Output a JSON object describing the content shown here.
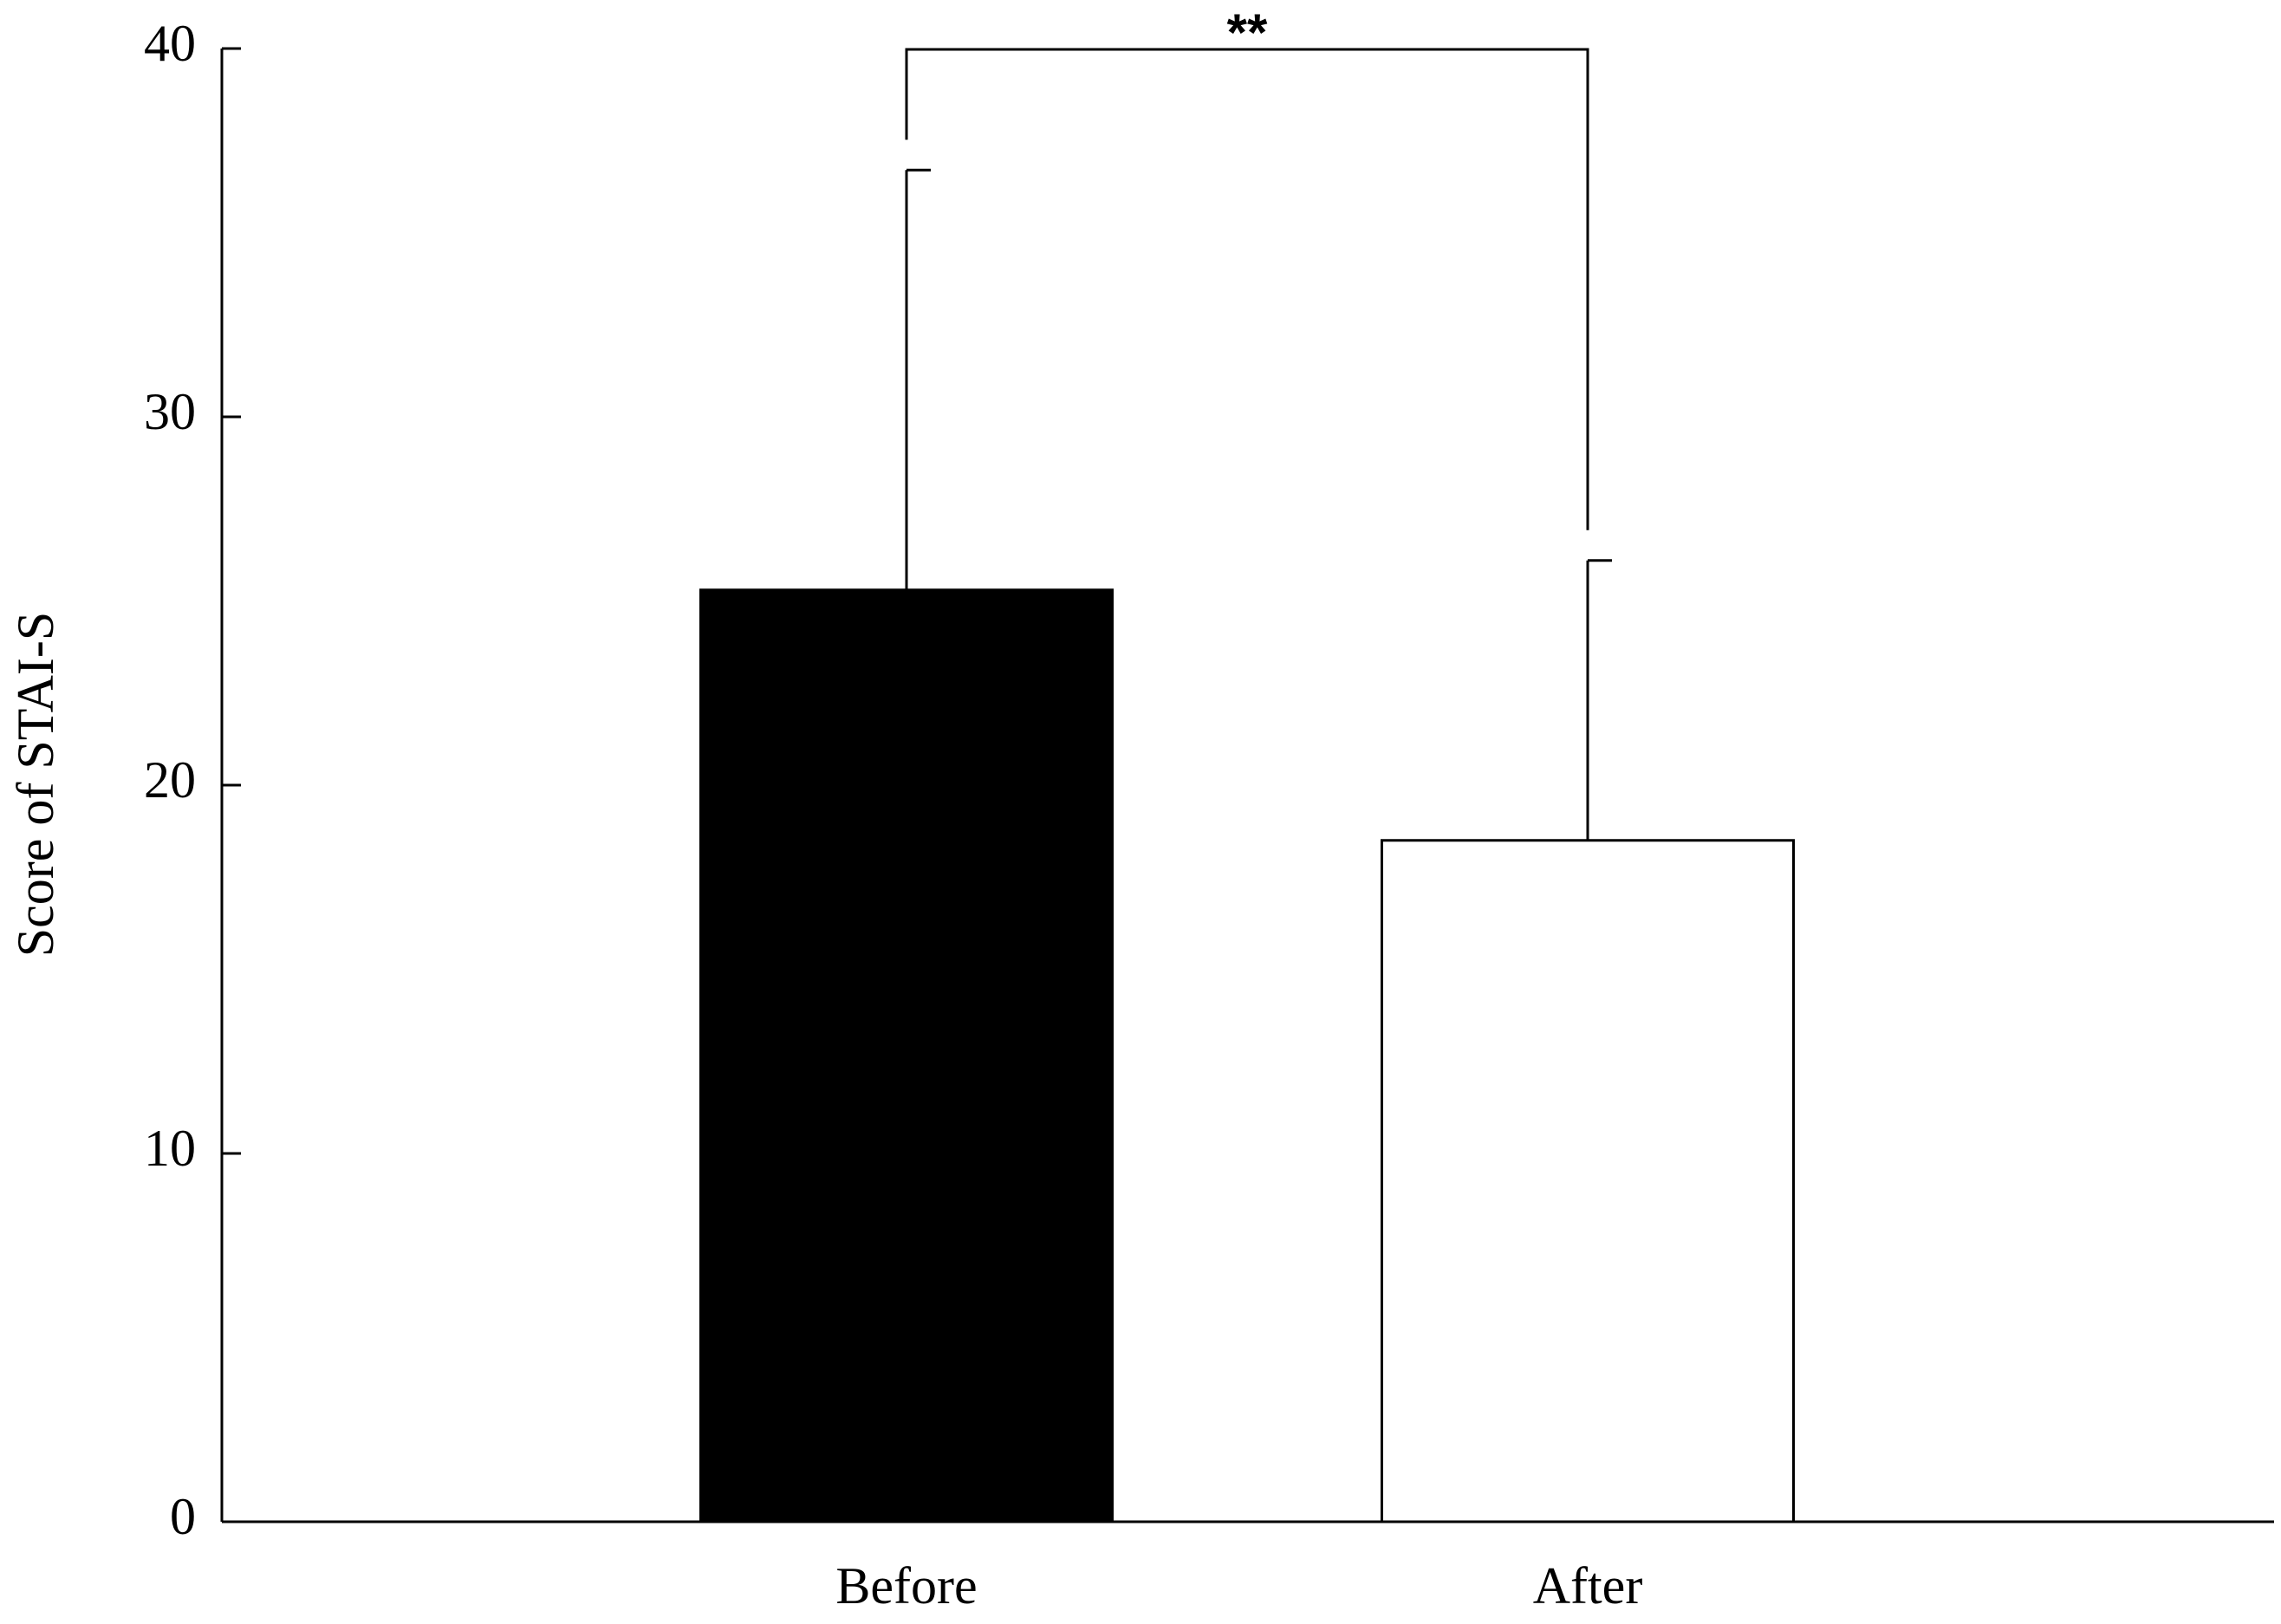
{
  "chart_data": {
    "type": "bar",
    "y_label": "Score of STAI-S",
    "categories": [
      "Before",
      "After"
    ],
    "values": [
      25.3,
      18.5
    ],
    "errors": [
      11.4,
      7.6
    ],
    "colors": [
      "#000000",
      "#ffffff"
    ],
    "ylim": [
      0,
      40
    ],
    "yticks": [
      0,
      10,
      20,
      30,
      40
    ],
    "annotation": "**"
  }
}
